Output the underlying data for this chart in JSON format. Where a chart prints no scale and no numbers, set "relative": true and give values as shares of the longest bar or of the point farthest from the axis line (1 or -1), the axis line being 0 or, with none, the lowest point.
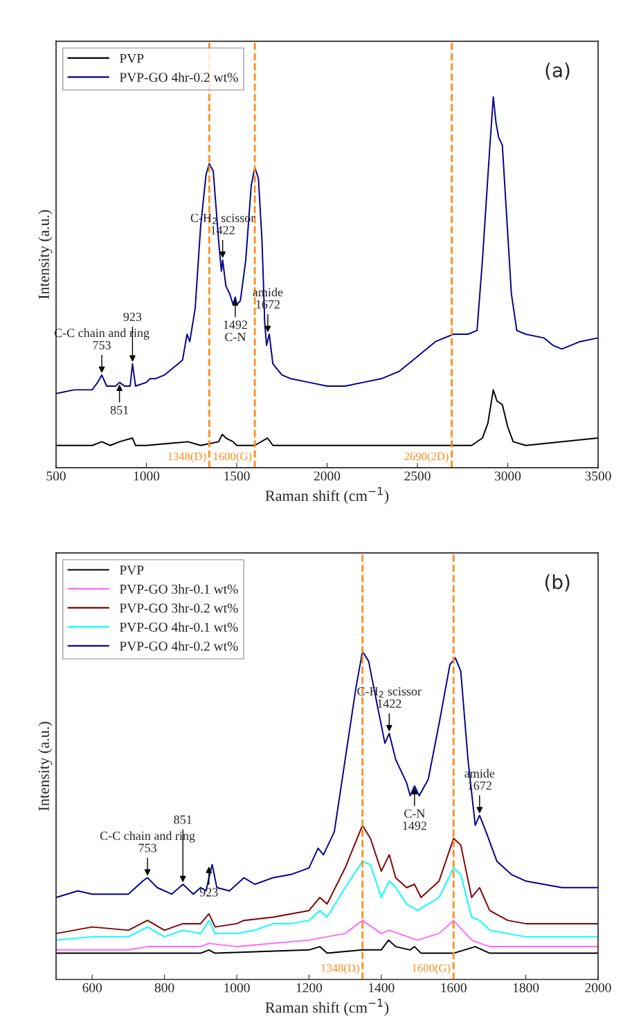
{
  "chart_data": [
    {
      "type": "line",
      "relative": true,
      "xlabel": "Raman shift (cm$^{−1}$)",
      "ylabel": "Intensity (a.u.)",
      "xlim": [
        500,
        3500
      ],
      "xticks": [
        500,
        1000,
        1500,
        2000,
        2500,
        3000,
        3500
      ],
      "legend": "top left",
      "line_style": "solid",
      "series": [
        {
          "name": "PVP",
          "color": "#000000",
          "x": [
            500,
            700,
            753,
            800,
            851,
            923,
            940,
            1000,
            1230,
            1300,
            1400,
            1420,
            1440,
            1480,
            1500,
            1600,
            1670,
            1700,
            2000,
            2500,
            2800,
            2860,
            2890,
            2920,
            2940,
            2970,
            3000,
            3030,
            3100,
            3500
          ],
          "values": [
            0.06,
            0.06,
            0.07,
            0.06,
            0.07,
            0.08,
            0.06,
            0.06,
            0.07,
            0.06,
            0.07,
            0.09,
            0.08,
            0.07,
            0.06,
            0.06,
            0.08,
            0.06,
            0.06,
            0.06,
            0.06,
            0.08,
            0.12,
            0.21,
            0.18,
            0.17,
            0.11,
            0.07,
            0.06,
            0.08
          ]
        },
        {
          "name": "PVP-GO 4hr-0.2 wt%",
          "color": "#00008b",
          "x": [
            500,
            600,
            700,
            730,
            753,
            780,
            830,
            851,
            880,
            910,
            923,
            940,
            1000,
            1020,
            1050,
            1100,
            1150,
            1200,
            1225,
            1240,
            1270,
            1300,
            1330,
            1348,
            1370,
            1400,
            1415,
            1422,
            1440,
            1460,
            1480,
            1492,
            1500,
            1520,
            1550,
            1580,
            1600,
            1620,
            1640,
            1655,
            1665,
            1680,
            1700,
            1750,
            1800,
            1900,
            2000,
            2100,
            2200,
            2300,
            2400,
            2500,
            2600,
            2700,
            2780,
            2830,
            2860,
            2880,
            2900,
            2920,
            2935,
            2950,
            2970,
            2990,
            3020,
            3050,
            3100,
            3200,
            3250,
            3300,
            3400,
            3500
          ],
          "values": [
            0.2,
            0.21,
            0.21,
            0.23,
            0.25,
            0.22,
            0.22,
            0.23,
            0.22,
            0.22,
            0.28,
            0.22,
            0.23,
            0.24,
            0.24,
            0.25,
            0.27,
            0.29,
            0.36,
            0.34,
            0.43,
            0.65,
            0.79,
            0.82,
            0.8,
            0.61,
            0.53,
            0.56,
            0.49,
            0.47,
            0.44,
            0.46,
            0.44,
            0.45,
            0.56,
            0.76,
            0.81,
            0.78,
            0.61,
            0.39,
            0.33,
            0.36,
            0.28,
            0.25,
            0.24,
            0.23,
            0.22,
            0.22,
            0.23,
            0.24,
            0.26,
            0.3,
            0.34,
            0.36,
            0.36,
            0.37,
            0.56,
            0.71,
            0.86,
            1.0,
            0.93,
            0.89,
            0.87,
            0.71,
            0.47,
            0.37,
            0.36,
            0.35,
            0.33,
            0.32,
            0.34,
            0.35
          ]
        }
      ],
      "ref_lines": [
        {
          "axis": "x",
          "value": 1348,
          "label": "1348(D)",
          "color": "#ff8c1a",
          "line_style": "dashed"
        },
        {
          "axis": "x",
          "value": 1600,
          "label": "1600(G)",
          "color": "#ff8c1a",
          "line_style": "dashed"
        },
        {
          "axis": "x",
          "value": 2690,
          "label": "2690(2D)",
          "color": "#ff8c1a",
          "line_style": "dashed"
        }
      ],
      "annotations": [
        "(a)",
        {
          "text": "C-C chain and ring\n753",
          "x": 753,
          "y": 0.25
        },
        {
          "text": "851",
          "x": 851,
          "y": 0.23
        },
        {
          "text": "923",
          "x": 923,
          "y": 0.28
        },
        {
          "text": "C-H$_{2}$ scissor\n1422",
          "x": 1422,
          "y": 0.56
        },
        {
          "text": "1492\nC-N",
          "x": 1492,
          "y": 0.46
        },
        {
          "text": "amide\n1672",
          "x": 1672,
          "y": 0.36
        }
      ]
    },
    {
      "type": "line",
      "relative": true,
      "xlabel": "Raman shift (cm$^{−1}$)",
      "ylabel": "Intensity (a.u.)",
      "xlim": [
        500,
        2000
      ],
      "xticks": [
        600,
        800,
        1000,
        1200,
        1400,
        1600,
        1800,
        2000
      ],
      "legend": "top left",
      "line_style": "solid",
      "series": [
        {
          "name": "PVP",
          "color": "#000000",
          "x": [
            500,
            900,
            923,
            940,
            1200,
            1230,
            1250,
            1348,
            1400,
            1420,
            1440,
            1480,
            1492,
            1510,
            1600,
            1660,
            1700,
            2000
          ],
          "values": [
            0.08,
            0.08,
            0.09,
            0.08,
            0.09,
            0.1,
            0.08,
            0.09,
            0.09,
            0.12,
            0.1,
            0.09,
            0.1,
            0.08,
            0.08,
            0.1,
            0.08,
            0.08
          ]
        },
        {
          "name": "PVP-GO 3hr-0.1 wt%",
          "color": "#ff66ff",
          "x": [
            500,
            700,
            753,
            900,
            923,
            1000,
            1200,
            1300,
            1348,
            1400,
            1422,
            1500,
            1560,
            1600,
            1650,
            1700,
            2000
          ],
          "values": [
            0.09,
            0.09,
            0.1,
            0.1,
            0.11,
            0.1,
            0.12,
            0.14,
            0.18,
            0.14,
            0.15,
            0.12,
            0.14,
            0.18,
            0.12,
            0.1,
            0.1
          ]
        },
        {
          "name": "PVP-GO 3hr-0.2 wt%",
          "color": "#800000",
          "x": [
            500,
            600,
            700,
            753,
            800,
            851,
            900,
            923,
            940,
            1000,
            1020,
            1100,
            1150,
            1200,
            1230,
            1250,
            1300,
            1348,
            1370,
            1400,
            1422,
            1440,
            1470,
            1492,
            1510,
            1560,
            1600,
            1620,
            1650,
            1672,
            1700,
            1750,
            1800,
            1900,
            2000
          ],
          "values": [
            0.14,
            0.16,
            0.15,
            0.18,
            0.15,
            0.17,
            0.17,
            0.2,
            0.16,
            0.17,
            0.18,
            0.19,
            0.2,
            0.21,
            0.25,
            0.23,
            0.34,
            0.47,
            0.43,
            0.33,
            0.38,
            0.31,
            0.28,
            0.29,
            0.25,
            0.3,
            0.43,
            0.41,
            0.25,
            0.28,
            0.21,
            0.18,
            0.17,
            0.17,
            0.17
          ]
        },
        {
          "name": "PVP-GO 4hr-0.1 wt%",
          "color": "#00ffff",
          "x": [
            500,
            600,
            700,
            753,
            800,
            851,
            900,
            923,
            940,
            1000,
            1050,
            1100,
            1150,
            1200,
            1230,
            1250,
            1300,
            1348,
            1370,
            1400,
            1422,
            1440,
            1470,
            1500,
            1560,
            1600,
            1620,
            1650,
            1672,
            1700,
            1800,
            2000
          ],
          "values": [
            0.12,
            0.13,
            0.13,
            0.16,
            0.13,
            0.15,
            0.14,
            0.18,
            0.14,
            0.14,
            0.15,
            0.17,
            0.17,
            0.18,
            0.21,
            0.19,
            0.28,
            0.36,
            0.35,
            0.25,
            0.3,
            0.28,
            0.23,
            0.21,
            0.25,
            0.34,
            0.32,
            0.19,
            0.18,
            0.15,
            0.13,
            0.13
          ]
        },
        {
          "name": "PVP-GO 4hr-0.2 wt%",
          "color": "#00008b",
          "x": [
            500,
            560,
            600,
            700,
            740,
            753,
            780,
            820,
            851,
            880,
            900,
            915,
            923,
            932,
            945,
            980,
            1020,
            1050,
            1100,
            1150,
            1200,
            1225,
            1240,
            1270,
            1300,
            1330,
            1348,
            1365,
            1390,
            1410,
            1422,
            1440,
            1470,
            1480,
            1492,
            1505,
            1530,
            1560,
            1590,
            1605,
            1620,
            1640,
            1660,
            1672,
            1690,
            1720,
            1760,
            1800,
            1900,
            2000
          ],
          "values": [
            0.25,
            0.27,
            0.26,
            0.26,
            0.3,
            0.31,
            0.28,
            0.26,
            0.29,
            0.26,
            0.28,
            0.27,
            0.31,
            0.35,
            0.28,
            0.27,
            0.31,
            0.29,
            0.31,
            0.32,
            0.34,
            0.4,
            0.38,
            0.45,
            0.67,
            0.89,
            1.0,
            0.97,
            0.83,
            0.72,
            0.75,
            0.67,
            0.6,
            0.56,
            0.59,
            0.56,
            0.61,
            0.78,
            0.96,
            0.98,
            0.94,
            0.67,
            0.47,
            0.5,
            0.45,
            0.36,
            0.32,
            0.3,
            0.28,
            0.28
          ]
        }
      ],
      "ref_lines": [
        {
          "axis": "x",
          "value": 1348,
          "label": "1348(D)",
          "color": "#ff8c1a",
          "line_style": "dashed"
        },
        {
          "axis": "x",
          "value": 1600,
          "label": "1600(G)",
          "color": "#ff8c1a",
          "line_style": "dashed"
        }
      ],
      "annotations": [
        "(b)",
        {
          "text": "C-C chain and ring\n753",
          "x": 753,
          "y": 0.31
        },
        {
          "text": "851",
          "x": 851,
          "y": 0.29
        },
        {
          "text": "923",
          "x": 923,
          "y": 0.35
        },
        {
          "text": "C-H$_{2}$ scissor\n1422",
          "x": 1422,
          "y": 0.75
        },
        {
          "text": "C-N\n1492",
          "x": 1492,
          "y": 0.59
        },
        {
          "text": "amide\n1672",
          "x": 1672,
          "y": 0.5
        }
      ]
    }
  ]
}
